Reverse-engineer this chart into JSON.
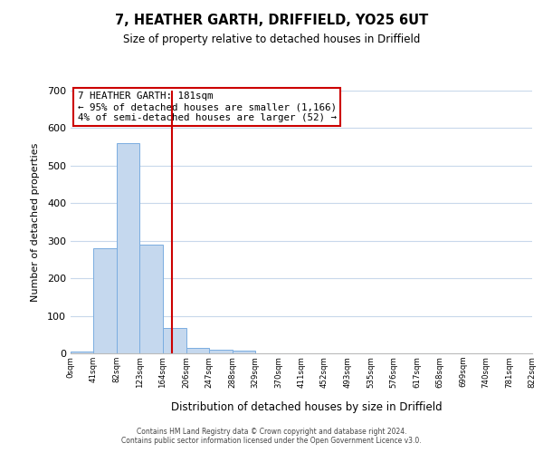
{
  "title": "7, HEATHER GARTH, DRIFFIELD, YO25 6UT",
  "subtitle": "Size of property relative to detached houses in Driffield",
  "xlabel": "Distribution of detached houses by size in Driffield",
  "ylabel": "Number of detached properties",
  "bar_values": [
    5,
    280,
    560,
    290,
    68,
    15,
    10,
    8,
    0,
    0,
    0,
    0,
    0,
    0,
    0,
    0,
    0,
    0,
    0,
    0
  ],
  "bin_edges": [
    0,
    41,
    82,
    123,
    164,
    206,
    247,
    288,
    329,
    370,
    411,
    452,
    493,
    535,
    576,
    617,
    658,
    699,
    740,
    781,
    822
  ],
  "tick_labels": [
    "0sqm",
    "41sqm",
    "82sqm",
    "123sqm",
    "164sqm",
    "206sqm",
    "247sqm",
    "288sqm",
    "329sqm",
    "370sqm",
    "411sqm",
    "452sqm",
    "493sqm",
    "535sqm",
    "576sqm",
    "617sqm",
    "658sqm",
    "699sqm",
    "740sqm",
    "781sqm",
    "822sqm"
  ],
  "bar_color": "#c5d8ee",
  "bar_edgecolor": "#7aade0",
  "red_line_x": 181,
  "annotation_title": "7 HEATHER GARTH: 181sqm",
  "annotation_line1": "← 95% of detached houses are smaller (1,166)",
  "annotation_line2": "4% of semi-detached houses are larger (52) →",
  "annotation_box_color": "#ffffff",
  "annotation_box_edgecolor": "#cc0000",
  "ylim": [
    0,
    700
  ],
  "yticks": [
    0,
    100,
    200,
    300,
    400,
    500,
    600,
    700
  ],
  "footer1": "Contains HM Land Registry data © Crown copyright and database right 2024.",
  "footer2": "Contains public sector information licensed under the Open Government Licence v3.0.",
  "background_color": "#ffffff",
  "grid_color": "#c8d8eb"
}
